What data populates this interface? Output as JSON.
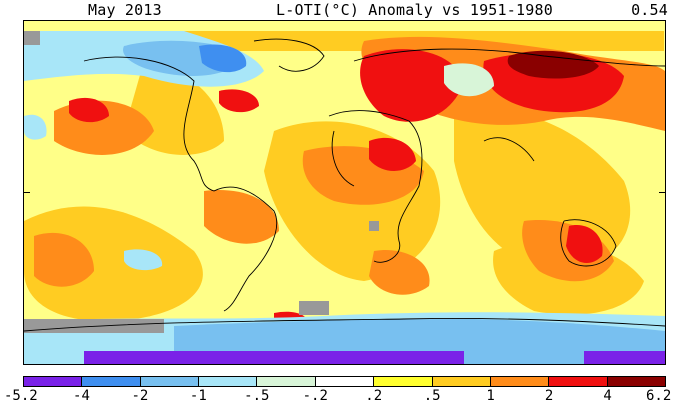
{
  "header": {
    "date": "May 2013",
    "title": "L-OTI(°C) Anomaly vs 1951-1980",
    "global_mean": "0.54"
  },
  "legend": {
    "labels": [
      "-5.2",
      "-4",
      "-2",
      "-1",
      "-.5",
      "-.2",
      ".2",
      ".5",
      "1",
      "2",
      "4",
      "6.2"
    ],
    "colors": [
      "#7a22e8",
      "#3f8ff0",
      "#78c0f0",
      "#a8e6f8",
      "#d8f5d8",
      "#ffffff",
      "#ffff2e",
      "#ffcc22",
      "#ff8c1a",
      "#f01010",
      "#8a0000"
    ]
  },
  "map": {
    "background_color": "#ffff88",
    "missing_data_color": "#999999"
  }
}
